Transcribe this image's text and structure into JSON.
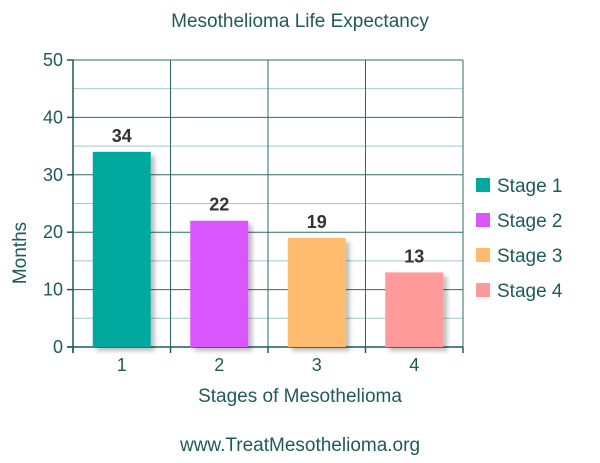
{
  "chart_data": {
    "type": "bar",
    "title": "Mesothelioma Life Expectancy",
    "xlabel": "Stages of Mesothelioma",
    "ylabel": "Months",
    "categories": [
      "1",
      "2",
      "3",
      "4"
    ],
    "values": [
      34,
      22,
      19,
      13
    ],
    "data_labels": [
      "34",
      "22",
      "19",
      "13"
    ],
    "ylim": [
      0,
      50
    ],
    "yticks": [
      "0",
      "10",
      "20",
      "30",
      "40",
      "50"
    ],
    "grid": true,
    "legend_position": "right",
    "legend": [
      {
        "label": "Stage 1",
        "color": "#00a99d"
      },
      {
        "label": "Stage 2",
        "color": "#d957ff"
      },
      {
        "label": "Stage 3",
        "color": "#ffbb6e"
      },
      {
        "label": "Stage 4",
        "color": "#ff9a9a"
      }
    ],
    "bar_colors": [
      "#00a99d",
      "#d957ff",
      "#ffbb6e",
      "#ff9a9a"
    ]
  },
  "footer": "www.TreatMesothelioma.org"
}
